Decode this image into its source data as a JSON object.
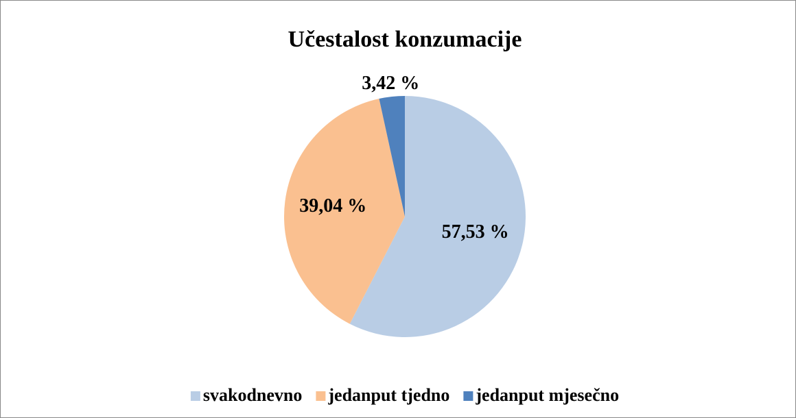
{
  "chart_data": {
    "type": "pie",
    "title": "Učestalost konzumacije",
    "categories": [
      "svakodnevno",
      "jedanput tjedno",
      "jedanput mjesečno"
    ],
    "values": [
      57.53,
      39.04,
      3.42
    ],
    "value_labels": [
      "57,53 %",
      "39,04 %",
      "3,42 %"
    ],
    "colors": [
      "#b9cde5",
      "#fac090",
      "#4f81bd"
    ],
    "legend": "bottom"
  }
}
